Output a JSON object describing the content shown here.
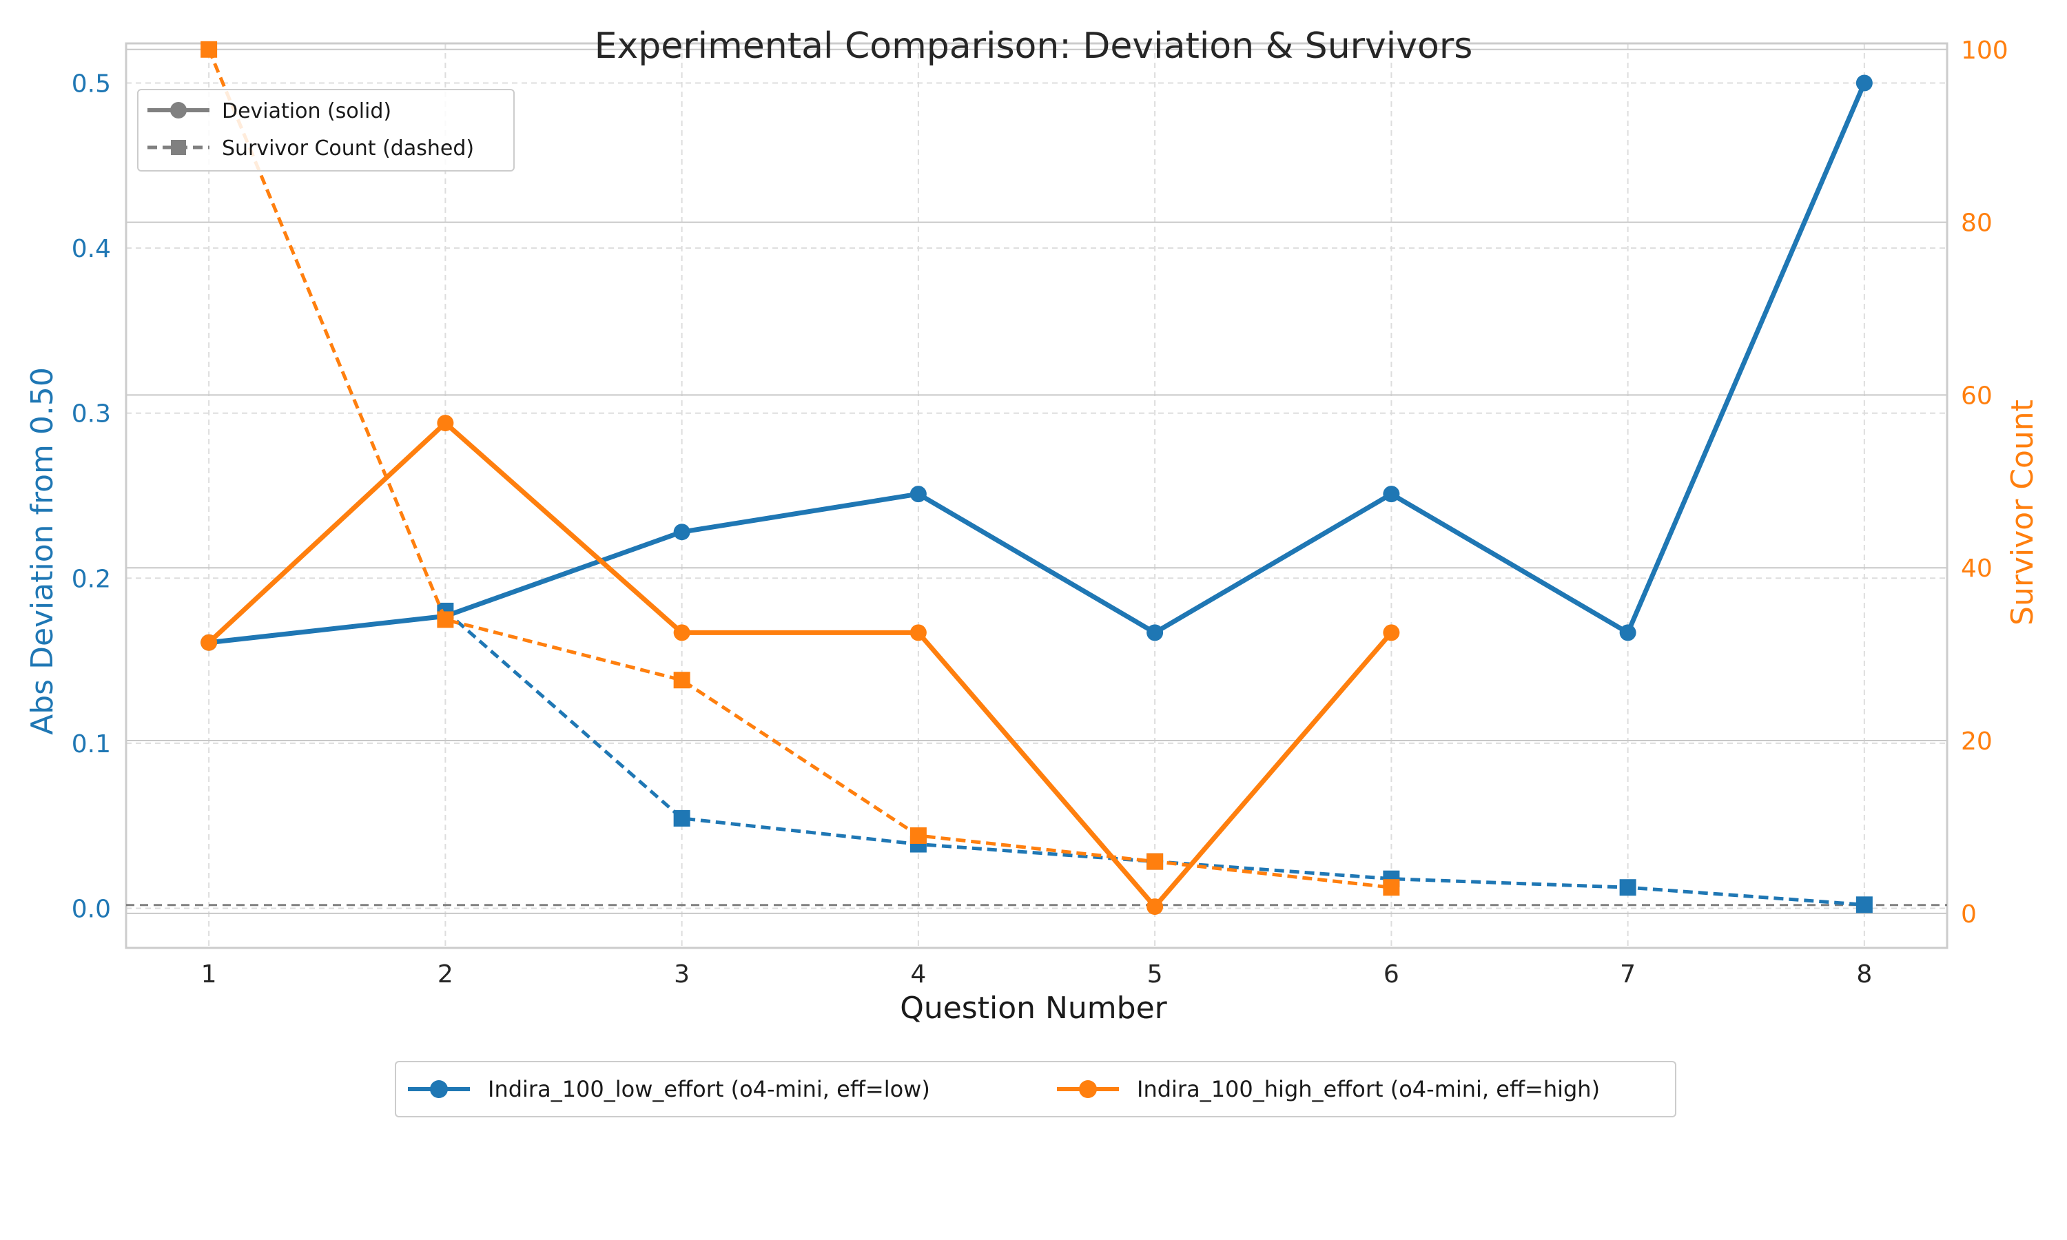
{
  "chart_data": {
    "type": "line",
    "title": "Experimental Comparison: Deviation & Survivors",
    "xlabel": "Question Number",
    "ylabel_left": "Abs Deviation from 0.50",
    "ylabel_right": "Survivor Count",
    "x_ticks": [
      "1",
      "2",
      "3",
      "4",
      "5",
      "6",
      "7",
      "8"
    ],
    "y_left_ticks": [
      "0.0",
      "0.1",
      "0.2",
      "0.3",
      "0.4",
      "0.5"
    ],
    "y_right_ticks": [
      "0",
      "20",
      "40",
      "60",
      "80",
      "100"
    ],
    "xlim": [
      0.65,
      8.35
    ],
    "ylim_left": [
      -0.024,
      0.524
    ],
    "ylim_right": [
      -4.0,
      100.7
    ],
    "grid": true,
    "reference_line_y_left": 0.002,
    "style_legend": {
      "deviation": "Deviation (solid)",
      "survivor": "Survivor Count (dashed)",
      "placement": "top-left"
    },
    "series_legend_placement": "bottom-center",
    "series": [
      {
        "name": "Indira_100_low_effort (o4-mini, eff=low)",
        "color": "#1f77b4",
        "deviation": [
          {
            "x": 1,
            "y": 0.161
          },
          {
            "x": 2,
            "y": 0.177
          },
          {
            "x": 3,
            "y": 0.228
          },
          {
            "x": 4,
            "y": 0.251
          },
          {
            "x": 5,
            "y": 0.167
          },
          {
            "x": 6,
            "y": 0.251
          },
          {
            "x": 7,
            "y": 0.167
          },
          {
            "x": 8,
            "y": 0.5
          }
        ],
        "survivors": [
          {
            "x": 2,
            "y": 35
          },
          {
            "x": 3,
            "y": 11
          },
          {
            "x": 4,
            "y": 8
          },
          {
            "x": 5,
            "y": 6
          },
          {
            "x": 6,
            "y": 4
          },
          {
            "x": 7,
            "y": 3
          },
          {
            "x": 8,
            "y": 1
          }
        ]
      },
      {
        "name": "Indira_100_high_effort (o4-mini, eff=high)",
        "color": "#ff7f0e",
        "deviation": [
          {
            "x": 1,
            "y": 0.161
          },
          {
            "x": 2,
            "y": 0.294
          },
          {
            "x": 3,
            "y": 0.167
          },
          {
            "x": 4,
            "y": 0.167
          },
          {
            "x": 5,
            "y": 0.001
          },
          {
            "x": 6,
            "y": 0.167
          }
        ],
        "survivors": [
          {
            "x": 1,
            "y": 100
          },
          {
            "x": 2,
            "y": 34
          },
          {
            "x": 3,
            "y": 27
          },
          {
            "x": 4,
            "y": 9
          },
          {
            "x": 5,
            "y": 6
          },
          {
            "x": 6,
            "y": 3
          }
        ]
      }
    ]
  }
}
